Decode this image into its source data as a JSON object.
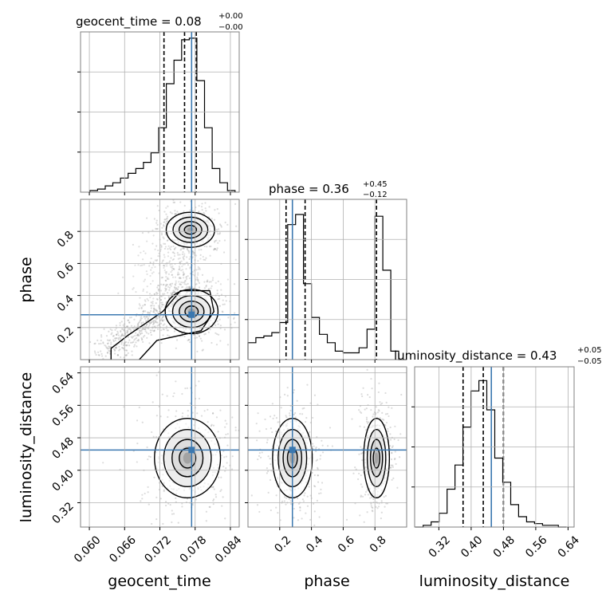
{
  "figure": {
    "parameters": [
      "geocent_time",
      "phase",
      "luminosity_distance"
    ],
    "titles": [
      {
        "label": "geocent_time = 0.08",
        "sup": "+0.00",
        "sub": "−0.00"
      },
      {
        "label": "phase = 0.36",
        "sup": "+0.45",
        "sub": "−0.12"
      },
      {
        "label": "luminosity_distance = 0.43",
        "sup": "+0.05",
        "sub": "−0.05"
      }
    ],
    "xlabels": [
      "geocent_time",
      "phase",
      "luminosity_distance"
    ],
    "ylabels": [
      "phase",
      "luminosity_distance"
    ]
  },
  "chart_data": {
    "type": "corner",
    "injection_color": "#3b78b0",
    "injection": {
      "geocent_time": 0.0774,
      "phase": 0.28,
      "luminosity_distance": 0.45
    },
    "axes": {
      "geocent_time": {
        "range": [
          0.0585,
          0.0855
        ],
        "ticks": [
          0.06,
          0.066,
          0.072,
          0.078,
          0.084
        ],
        "tick_labels": [
          "0.060",
          "0.066",
          "0.072",
          "0.078",
          "0.084"
        ]
      },
      "phase": {
        "range": [
          0.0,
          1.0
        ],
        "ticks": [
          0.2,
          0.4,
          0.6,
          0.8
        ],
        "tick_labels": [
          "0.2",
          "0.4",
          "0.6",
          "0.8"
        ]
      },
      "luminosity_distance": {
        "range": [
          0.26,
          0.655
        ],
        "ticks": [
          0.32,
          0.4,
          0.48,
          0.56,
          0.64
        ],
        "tick_labels": [
          "0.32",
          "0.40",
          "0.48",
          "0.56",
          "0.64"
        ]
      }
    },
    "marginals": {
      "geocent_time": {
        "bin_edges": [
          0.0601,
          0.0614,
          0.0627,
          0.064,
          0.0653,
          0.0666,
          0.0679,
          0.0692,
          0.0705,
          0.0718,
          0.0731,
          0.0744,
          0.0757,
          0.077,
          0.0783,
          0.0796,
          0.0809,
          0.0822,
          0.0835,
          0.0848
        ],
        "counts": [
          1,
          2,
          4,
          6,
          9,
          12,
          15,
          19,
          25,
          41,
          69,
          84,
          97,
          98,
          71,
          41,
          15,
          6,
          1
        ],
        "quantiles": [
          0.0727,
          0.0762,
          0.0782
        ],
        "ylim": [
          0,
          102
        ]
      },
      "phase": {
        "bin_edges": [
          0.0,
          0.05,
          0.1,
          0.15,
          0.2,
          0.25,
          0.3,
          0.35,
          0.4,
          0.45,
          0.5,
          0.55,
          0.6,
          0.65,
          0.7,
          0.75,
          0.8,
          0.85,
          0.9,
          0.95,
          1.0
        ],
        "counts": [
          10,
          13,
          14,
          16,
          22,
          80,
          86,
          45,
          25,
          15,
          10,
          5,
          4,
          4,
          7,
          18,
          85,
          53,
          5,
          0
        ],
        "quantiles": [
          0.24,
          0.36,
          0.81
        ],
        "ylim": [
          0,
          95
        ]
      },
      "luminosity_distance": {
        "bin_edges": [
          0.2615,
          0.2812,
          0.3009,
          0.3206,
          0.3403,
          0.36,
          0.3797,
          0.3994,
          0.4191,
          0.4388,
          0.4585,
          0.4782,
          0.4979,
          0.5176,
          0.5373,
          0.557,
          0.5767,
          0.5964,
          0.6161,
          0.6358
        ],
        "counts": [
          0,
          1,
          3,
          8,
          22,
          36,
          58,
          79,
          85,
          68,
          40,
          26,
          13,
          6,
          3,
          2,
          1,
          1,
          0
        ],
        "quantiles": [
          0.38,
          0.43,
          0.48
        ],
        "ylim": [
          0,
          93
        ]
      }
    },
    "contours_2d": [
      {
        "x": "geocent_time",
        "y": "phase",
        "blobs": [
          {
            "cx": 0.0772,
            "cy": 0.81,
            "rx": 0.0033,
            "ry": 0.095
          },
          {
            "cx": 0.0774,
            "cy": 0.3,
            "rx": 0.0036,
            "ry": 0.12
          }
        ]
      },
      {
        "x": "geocent_time",
        "y": "luminosity_distance",
        "blobs": [
          {
            "cx": 0.0767,
            "cy": 0.43,
            "rx": 0.0045,
            "ry": 0.085
          }
        ]
      },
      {
        "x": "phase",
        "y": "luminosity_distance",
        "blobs": [
          {
            "cx": 0.28,
            "cy": 0.43,
            "rx": 0.1,
            "ry": 0.085
          },
          {
            "cx": 0.81,
            "cy": 0.43,
            "rx": 0.065,
            "ry": 0.085
          }
        ]
      }
    ]
  }
}
